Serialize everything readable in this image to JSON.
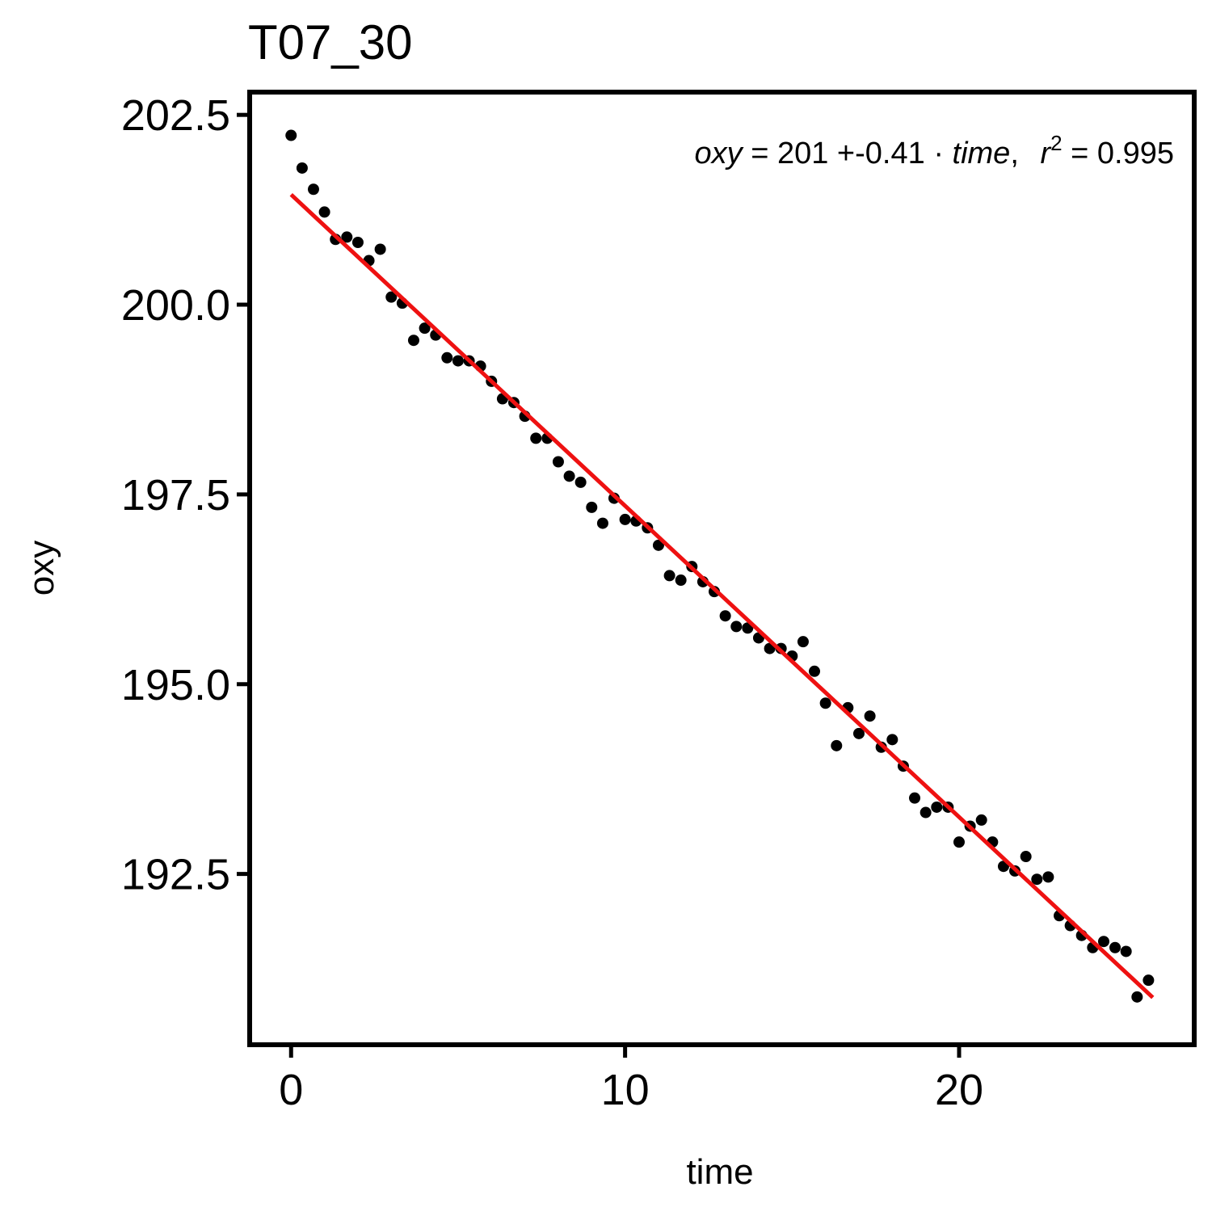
{
  "chart_data": {
    "type": "scatter",
    "title": "T07_30",
    "xlabel": "time",
    "ylabel": "oxy",
    "xlim": [
      -1.24,
      27.04
    ],
    "ylim": [
      190.25,
      202.8
    ],
    "x_ticks": [
      0,
      10,
      20
    ],
    "x_tick_labels": [
      "0",
      "10",
      "20"
    ],
    "y_ticks": [
      192.5,
      195.0,
      197.5,
      200.0,
      202.5
    ],
    "y_tick_labels": [
      "192.5",
      "195.0",
      "197.5",
      "200.0",
      "202.5"
    ],
    "grid": false,
    "legend": "none",
    "fit": {
      "intercept": 201.45,
      "slope": -0.41,
      "x_range": [
        0,
        25.8
      ],
      "color": "#ee1111",
      "annotation": {
        "lhs": "oxy",
        "eq": "=",
        "intercept_text": "201",
        "plus": "+",
        "slope_text": "-0.41",
        "dot": "·",
        "var": "time",
        "comma": ",",
        "r2_label": "r",
        "r2_exp": "2",
        "r2_eq": "=",
        "r2_value": "0.995"
      }
    },
    "point_color": "#000000",
    "points": [
      [
        0.0,
        202.23
      ],
      [
        0.33,
        201.8
      ],
      [
        0.67,
        201.52
      ],
      [
        1.0,
        201.22
      ],
      [
        1.33,
        200.86
      ],
      [
        1.67,
        200.89
      ],
      [
        2.0,
        200.82
      ],
      [
        2.33,
        200.58
      ],
      [
        2.67,
        200.73
      ],
      [
        3.0,
        200.1
      ],
      [
        3.33,
        200.02
      ],
      [
        3.67,
        199.53
      ],
      [
        4.0,
        199.69
      ],
      [
        4.33,
        199.6
      ],
      [
        4.67,
        199.3
      ],
      [
        5.0,
        199.26
      ],
      [
        5.33,
        199.26
      ],
      [
        5.67,
        199.19
      ],
      [
        6.0,
        198.99
      ],
      [
        6.33,
        198.76
      ],
      [
        6.67,
        198.71
      ],
      [
        7.0,
        198.53
      ],
      [
        7.33,
        198.24
      ],
      [
        7.67,
        198.24
      ],
      [
        8.0,
        197.93
      ],
      [
        8.33,
        197.74
      ],
      [
        8.67,
        197.66
      ],
      [
        9.0,
        197.33
      ],
      [
        9.33,
        197.12
      ],
      [
        9.67,
        197.45
      ],
      [
        10.0,
        197.17
      ],
      [
        10.33,
        197.15
      ],
      [
        10.67,
        197.06
      ],
      [
        11.0,
        196.83
      ],
      [
        11.33,
        196.43
      ],
      [
        11.67,
        196.37
      ],
      [
        12.0,
        196.55
      ],
      [
        12.33,
        196.35
      ],
      [
        12.67,
        196.22
      ],
      [
        13.0,
        195.9
      ],
      [
        13.33,
        195.76
      ],
      [
        13.67,
        195.74
      ],
      [
        14.0,
        195.61
      ],
      [
        14.33,
        195.47
      ],
      [
        14.67,
        195.47
      ],
      [
        15.0,
        195.37
      ],
      [
        15.33,
        195.56
      ],
      [
        15.67,
        195.17
      ],
      [
        16.0,
        194.75
      ],
      [
        16.33,
        194.19
      ],
      [
        16.67,
        194.69
      ],
      [
        17.0,
        194.35
      ],
      [
        17.33,
        194.58
      ],
      [
        17.67,
        194.17
      ],
      [
        18.0,
        194.27
      ],
      [
        18.33,
        193.92
      ],
      [
        18.67,
        193.5
      ],
      [
        19.0,
        193.31
      ],
      [
        19.33,
        193.38
      ],
      [
        19.67,
        193.38
      ],
      [
        20.0,
        192.92
      ],
      [
        20.33,
        193.13
      ],
      [
        20.67,
        193.21
      ],
      [
        21.0,
        192.92
      ],
      [
        21.33,
        192.6
      ],
      [
        21.67,
        192.54
      ],
      [
        22.0,
        192.73
      ],
      [
        22.33,
        192.43
      ],
      [
        22.67,
        192.46
      ],
      [
        23.0,
        191.95
      ],
      [
        23.33,
        191.82
      ],
      [
        23.67,
        191.69
      ],
      [
        24.0,
        191.53
      ],
      [
        24.33,
        191.61
      ],
      [
        24.67,
        191.53
      ],
      [
        25.0,
        191.48
      ],
      [
        25.33,
        190.88
      ],
      [
        25.67,
        191.1
      ]
    ]
  }
}
